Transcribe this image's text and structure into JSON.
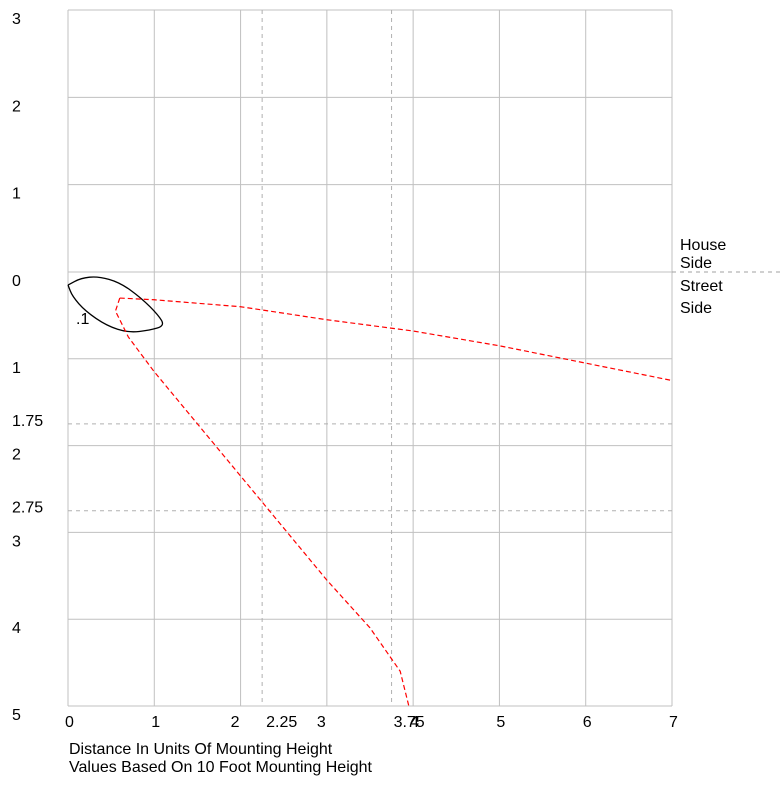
{
  "chart_data": {
    "type": "line",
    "xlabel": "Distance In Units Of Mounting Height",
    "note": "Values Based On 10 Foot Mounting Height",
    "xlim": [
      0,
      7
    ],
    "ylim_street": [
      0,
      5
    ],
    "ylim_house": [
      0,
      3
    ],
    "x_ticks": [
      "0",
      "1",
      "2",
      "2.25",
      "3",
      "3.75",
      "4",
      "5",
      "6",
      "7"
    ],
    "y_ticks_house": [
      "3",
      "2",
      "1"
    ],
    "y_ticks_street": [
      "0",
      "1",
      "1.75",
      "2",
      "2.75",
      "3",
      "4",
      "5"
    ],
    "dashed_x": [
      2.25,
      3.75
    ],
    "dashed_y": [
      1.75,
      2.75
    ],
    "side_labels": {
      "house": [
        "House",
        "Side"
      ],
      "street": [
        "Street",
        "Side"
      ]
    },
    "contour_label": ".1",
    "contour": {
      "color": "#000000",
      "points": [
        [
          0,
          0.15
        ],
        [
          0.15,
          0.07
        ],
        [
          0.35,
          0.05
        ],
        [
          0.6,
          0.12
        ],
        [
          0.85,
          0.3
        ],
        [
          1.05,
          0.5
        ],
        [
          1.12,
          0.62
        ],
        [
          0.95,
          0.67
        ],
        [
          0.7,
          0.7
        ],
        [
          0.45,
          0.62
        ],
        [
          0.2,
          0.45
        ],
        [
          0.05,
          0.28
        ],
        [
          0,
          0.15
        ]
      ]
    },
    "series": [
      {
        "color": "#ff0000",
        "points": [
          [
            0.6,
            0.3
          ],
          [
            1.0,
            0.32
          ],
          [
            2.0,
            0.4
          ],
          [
            3.0,
            0.55
          ],
          [
            4.0,
            0.68
          ],
          [
            5.0,
            0.85
          ],
          [
            6.0,
            1.05
          ],
          [
            7.0,
            1.25
          ]
        ]
      },
      {
        "color": "#ff0000",
        "points": [
          [
            0.6,
            0.3
          ],
          [
            0.55,
            0.45
          ],
          [
            0.7,
            0.75
          ],
          [
            1.0,
            1.15
          ],
          [
            1.5,
            1.75
          ],
          [
            2.0,
            2.35
          ],
          [
            2.5,
            2.95
          ],
          [
            3.0,
            3.55
          ],
          [
            3.5,
            4.1
          ],
          [
            3.85,
            4.6
          ],
          [
            3.95,
            5.0
          ]
        ]
      }
    ]
  }
}
